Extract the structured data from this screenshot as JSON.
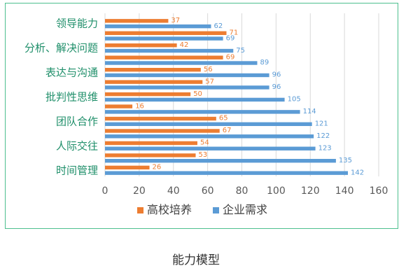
{
  "caption": "能力模型",
  "colors": {
    "frame": "#4dbf8f",
    "category_text": "#1f8f6a",
    "grid": "#d9d9d9",
    "axis_text": "#595959"
  },
  "chart_data": {
    "type": "bar",
    "orientation": "horizontal",
    "title": "",
    "xlabel": "",
    "ylabel": "",
    "xlim": [
      0,
      160
    ],
    "x_ticks": [
      0,
      20,
      40,
      60,
      80,
      100,
      120,
      140,
      160
    ],
    "grid": true,
    "legend_position": "bottom",
    "data_labels": true,
    "categories": [
      "领导能力",
      "",
      "分析、解决问题",
      "",
      "表达与沟通",
      "",
      "批判性思维",
      "",
      "团队合作",
      "",
      "人际交往",
      "",
      "时间管理"
    ],
    "series": [
      {
        "name": "高校培养",
        "color": "#ed7d31",
        "values": [
          37,
          71,
          42,
          69,
          56,
          57,
          50,
          16,
          65,
          67,
          54,
          53,
          26
        ]
      },
      {
        "name": "企业需求",
        "color": "#5b9bd5",
        "values": [
          62,
          69,
          75,
          89,
          96,
          96,
          105,
          114,
          121,
          122,
          123,
          135,
          142
        ]
      }
    ]
  }
}
